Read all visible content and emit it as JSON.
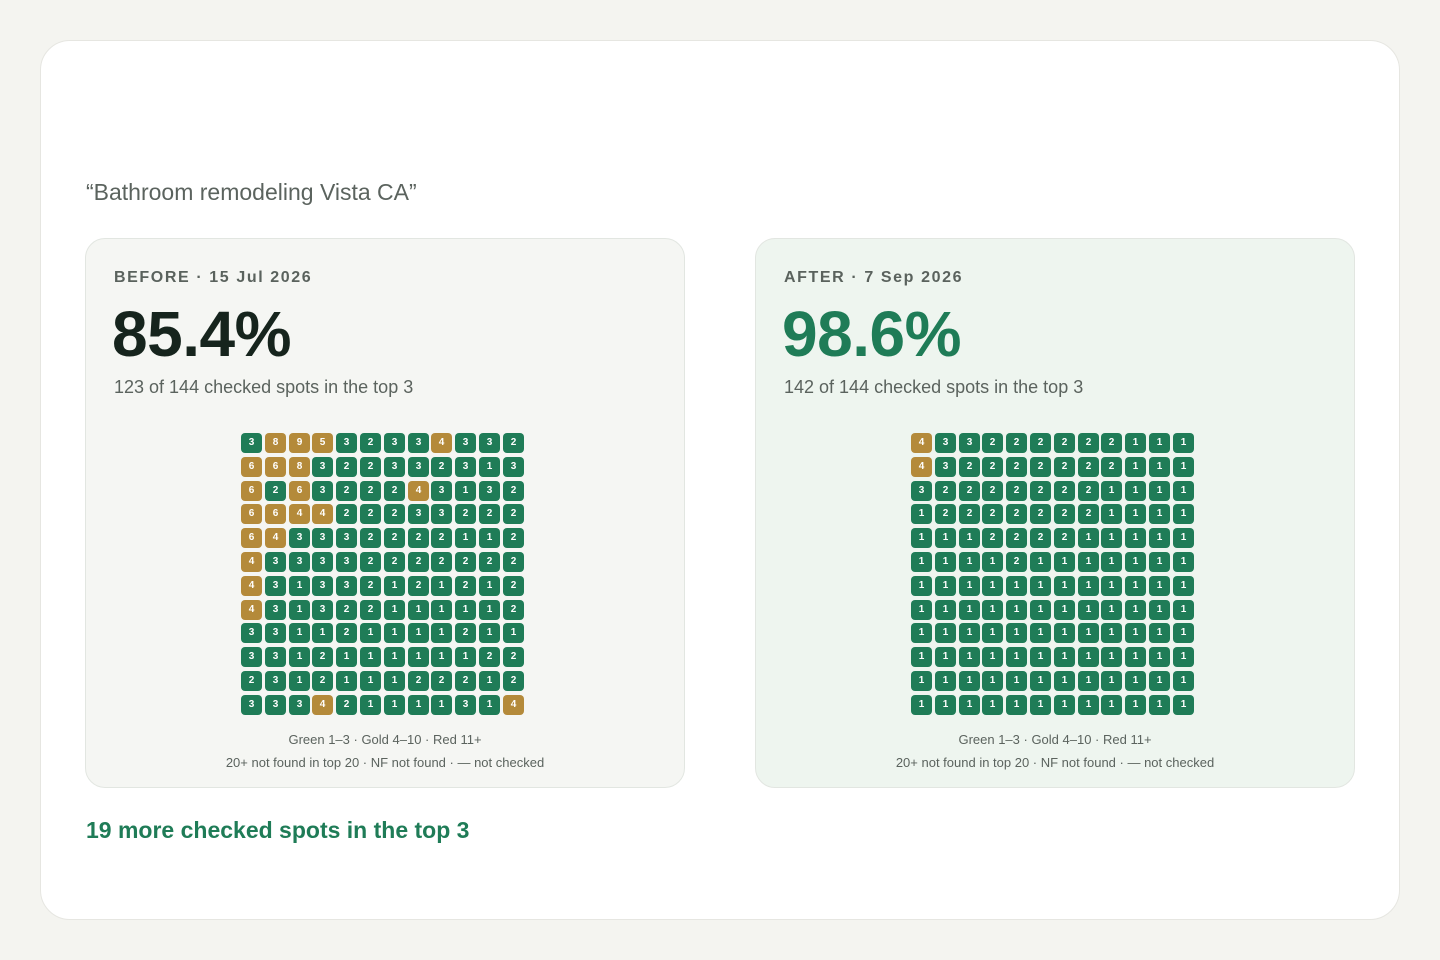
{
  "query": "“Bathroom remodeling Vista CA”",
  "colors": {
    "green": "#1f7c57",
    "gold": "#b48a3a",
    "red": "#b53e35"
  },
  "before": {
    "label": "BEFORE · 15 Jul 2026",
    "percent": "85.4%",
    "subtitle": "123 of 144 checked spots in the top 3",
    "grid": [
      [
        3,
        8,
        9,
        5,
        3,
        2,
        3,
        3,
        4,
        3,
        3,
        2
      ],
      [
        6,
        6,
        8,
        3,
        2,
        2,
        3,
        3,
        2,
        3,
        1,
        3
      ],
      [
        6,
        2,
        6,
        3,
        2,
        2,
        2,
        4,
        3,
        1,
        3,
        2
      ],
      [
        6,
        6,
        4,
        4,
        2,
        2,
        2,
        3,
        3,
        2,
        2,
        2
      ],
      [
        6,
        4,
        3,
        3,
        3,
        2,
        2,
        2,
        2,
        1,
        1,
        2
      ],
      [
        4,
        3,
        3,
        3,
        3,
        2,
        2,
        2,
        2,
        2,
        2,
        2
      ],
      [
        4,
        3,
        1,
        3,
        3,
        2,
        1,
        2,
        1,
        2,
        1,
        2
      ],
      [
        4,
        3,
        1,
        3,
        2,
        2,
        1,
        1,
        1,
        1,
        1,
        2
      ],
      [
        3,
        3,
        1,
        1,
        2,
        1,
        1,
        1,
        1,
        2,
        1,
        1
      ],
      [
        3,
        3,
        1,
        2,
        1,
        1,
        1,
        1,
        1,
        1,
        2,
        2
      ],
      [
        2,
        3,
        1,
        2,
        1,
        1,
        1,
        2,
        2,
        2,
        1,
        2
      ],
      [
        3,
        3,
        3,
        4,
        2,
        1,
        1,
        1,
        1,
        3,
        1,
        4
      ]
    ],
    "legend_line1": "Green 1–3 · Gold 4–10 · Red 11+",
    "legend_line2": "20+ not found in top 20 · NF not found · — not checked"
  },
  "after": {
    "label": "AFTER · 7 Sep 2026",
    "percent": "98.6%",
    "subtitle": "142 of 144 checked spots in the top 3",
    "grid": [
      [
        4,
        3,
        3,
        2,
        2,
        2,
        2,
        2,
        2,
        1,
        1,
        1
      ],
      [
        4,
        3,
        2,
        2,
        2,
        2,
        2,
        2,
        2,
        1,
        1,
        1
      ],
      [
        3,
        2,
        2,
        2,
        2,
        2,
        2,
        2,
        1,
        1,
        1,
        1
      ],
      [
        1,
        2,
        2,
        2,
        2,
        2,
        2,
        2,
        1,
        1,
        1,
        1
      ],
      [
        1,
        1,
        1,
        2,
        2,
        2,
        2,
        1,
        1,
        1,
        1,
        1
      ],
      [
        1,
        1,
        1,
        1,
        2,
        1,
        1,
        1,
        1,
        1,
        1,
        1
      ],
      [
        1,
        1,
        1,
        1,
        1,
        1,
        1,
        1,
        1,
        1,
        1,
        1
      ],
      [
        1,
        1,
        1,
        1,
        1,
        1,
        1,
        1,
        1,
        1,
        1,
        1
      ],
      [
        1,
        1,
        1,
        1,
        1,
        1,
        1,
        1,
        1,
        1,
        1,
        1
      ],
      [
        1,
        1,
        1,
        1,
        1,
        1,
        1,
        1,
        1,
        1,
        1,
        1
      ],
      [
        1,
        1,
        1,
        1,
        1,
        1,
        1,
        1,
        1,
        1,
        1,
        1
      ],
      [
        1,
        1,
        1,
        1,
        1,
        1,
        1,
        1,
        1,
        1,
        1,
        1
      ]
    ],
    "legend_line1": "Green 1–3 · Gold 4–10 · Red 11+",
    "legend_line2": "20+ not found in top 20 · NF not found · — not checked"
  },
  "summary": "19 more checked spots in the top 3"
}
